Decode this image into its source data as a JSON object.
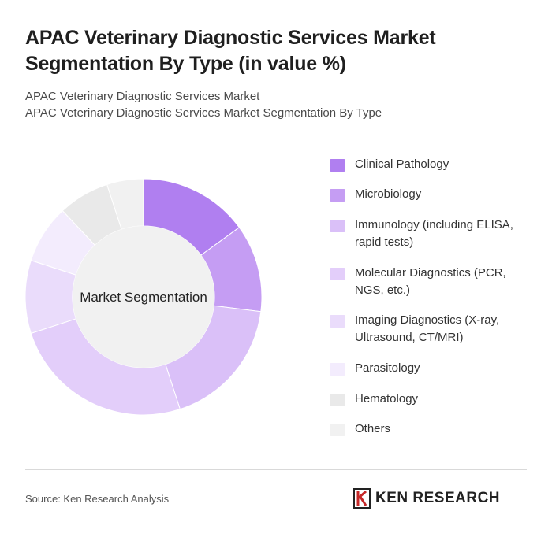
{
  "title": "APAC Veterinary Diagnostic Services Market Segmentation By Type (in value %)",
  "subtitle_line1": "APAC Veterinary Diagnostic Services Market",
  "subtitle_line2": "APAC Veterinary Diagnostic Services Market Segmentation By Type",
  "source": "Source: Ken Research Analysis",
  "logo_text": "KEN RESEARCH",
  "chart_data": {
    "type": "pie",
    "variant": "donut",
    "center_label": "Market Segmentation",
    "legend_position": "right",
    "series": [
      {
        "name": "Clinical Pathology",
        "value": 15,
        "color": "#b07ff0"
      },
      {
        "name": "Microbiology",
        "value": 12,
        "color": "#c59df3"
      },
      {
        "name": "Immunology (including ELISA, rapid tests)",
        "value": 18,
        "color": "#dac0f8"
      },
      {
        "name": "Molecular Diagnostics (PCR, NGS, etc.)",
        "value": 25,
        "color": "#e3cefa"
      },
      {
        "name": "Imaging Diagnostics (X-ray, Ultrasound, CT/MRI)",
        "value": 10,
        "color": "#eadcfb"
      },
      {
        "name": "Parasitology",
        "value": 8,
        "color": "#f3ecfd"
      },
      {
        "name": "Hematology",
        "value": 7,
        "color": "#e9e9e9"
      },
      {
        "name": "Others",
        "value": 5,
        "color": "#f1f1f1"
      }
    ]
  }
}
